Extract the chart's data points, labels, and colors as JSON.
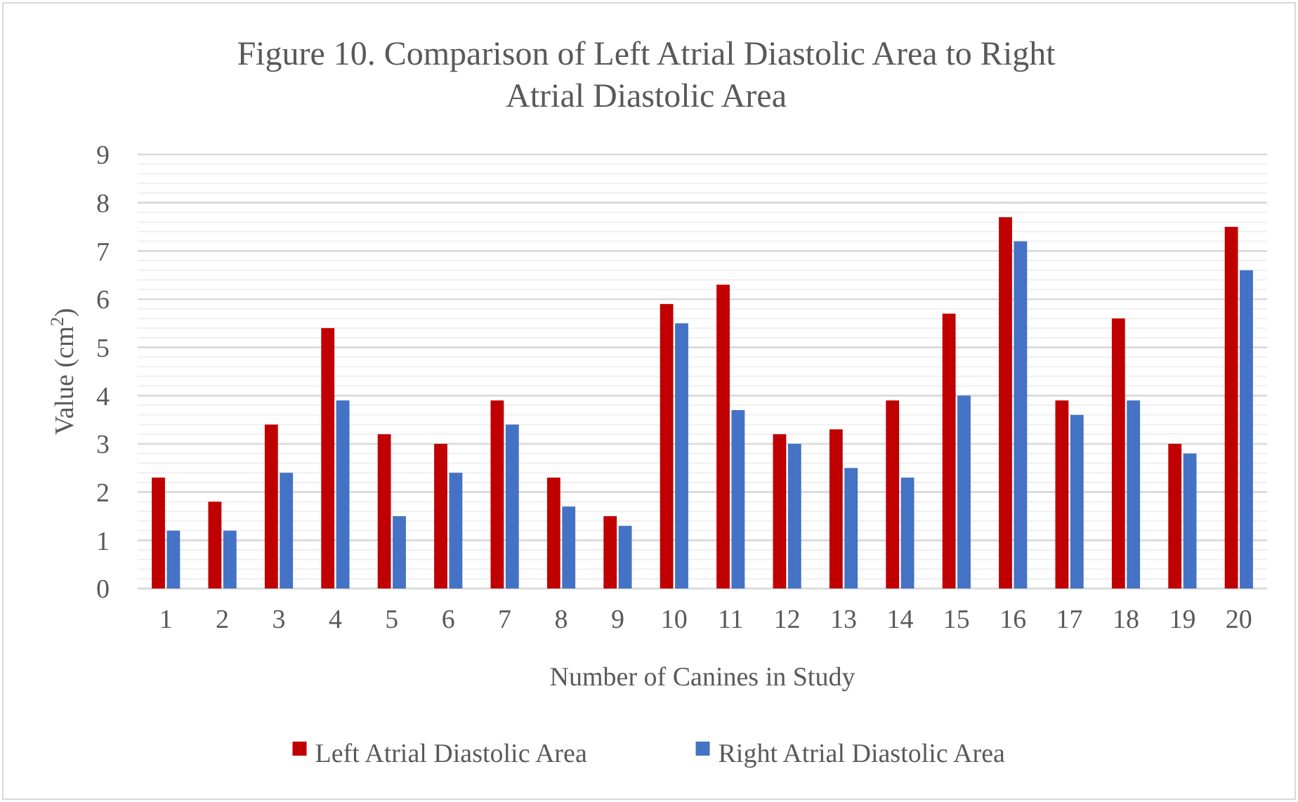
{
  "chart_data": {
    "type": "bar",
    "title": "Figure 10. Comparison of Left Atrial Diastolic Area to Right Atrial Diastolic Area",
    "xlabel": "Number of Canines in Study",
    "ylabel": "Value (cm$^{2}$)",
    "categories": [
      "1",
      "2",
      "3",
      "4",
      "5",
      "6",
      "7",
      "8",
      "9",
      "10",
      "11",
      "12",
      "13",
      "14",
      "15",
      "16",
      "17",
      "18",
      "19",
      "20"
    ],
    "series": [
      {
        "name": "Left Atrial Diastolic Area",
        "color": "#c00000",
        "values": [
          2.3,
          1.8,
          3.4,
          5.4,
          3.2,
          3.0,
          3.9,
          2.3,
          1.5,
          5.9,
          6.3,
          3.2,
          3.3,
          3.9,
          5.7,
          7.7,
          3.9,
          5.6,
          3.0,
          7.5
        ]
      },
      {
        "name": "Right Atrial Diastolic Area",
        "color": "#4472c4",
        "values": [
          1.2,
          1.2,
          2.4,
          3.9,
          1.5,
          2.4,
          3.4,
          1.7,
          1.3,
          5.5,
          3.7,
          3.0,
          2.5,
          2.3,
          4.0,
          7.2,
          3.6,
          3.9,
          2.8,
          6.6
        ]
      }
    ],
    "ylim": [
      0,
      9
    ],
    "yticks": [
      0,
      {
        "value": 0.2,
        "label": null
      },
      {
        "value": 0.4,
        "label": null
      },
      {
        "value": 0.6,
        "label": null
      },
      {
        "value": 0.8,
        "label": null
      },
      1,
      {
        "value": 1.2,
        "label": null
      },
      {
        "value": 1.4,
        "label": null
      },
      {
        "value": 1.6,
        "label": null
      },
      {
        "value": 1.8,
        "label": null
      },
      2,
      {
        "value": 2.2,
        "label": null
      },
      {
        "value": 2.4,
        "label": null
      },
      {
        "value": 2.6,
        "label": null
      },
      {
        "value": 2.8,
        "label": null
      },
      3,
      {
        "value": 3.2,
        "label": null
      },
      {
        "value": 3.4,
        "label": null
      },
      {
        "value": 3.6,
        "label": null
      },
      {
        "value": 3.8,
        "label": null
      },
      4,
      {
        "value": 4.2,
        "label": null
      },
      {
        "value": 4.4,
        "label": null
      },
      {
        "value": 4.6,
        "label": null
      },
      {
        "value": 4.8,
        "label": null
      },
      5,
      {
        "value": 5.2,
        "label": null
      },
      {
        "value": 5.4,
        "label": null
      },
      {
        "value": 5.6,
        "label": null
      },
      {
        "value": 5.8,
        "label": null
      },
      6,
      {
        "value": 6.2,
        "label": null
      },
      {
        "value": 6.4,
        "label": null
      },
      {
        "value": 6.6,
        "label": null
      },
      {
        "value": 6.8,
        "label": null
      },
      7,
      {
        "value": 7.2,
        "label": null
      },
      {
        "value": 7.4,
        "label": null
      },
      {
        "value": 7.6,
        "label": null
      },
      {
        "value": 7.8,
        "label": null
      },
      8,
      {
        "value": 8.2,
        "label": null
      },
      {
        "value": 8.4,
        "label": null
      },
      {
        "value": 8.6,
        "label": null
      },
      {
        "value": 8.8,
        "label": null
      },
      9
    ],
    "grid": true,
    "legend": "bottom"
  }
}
